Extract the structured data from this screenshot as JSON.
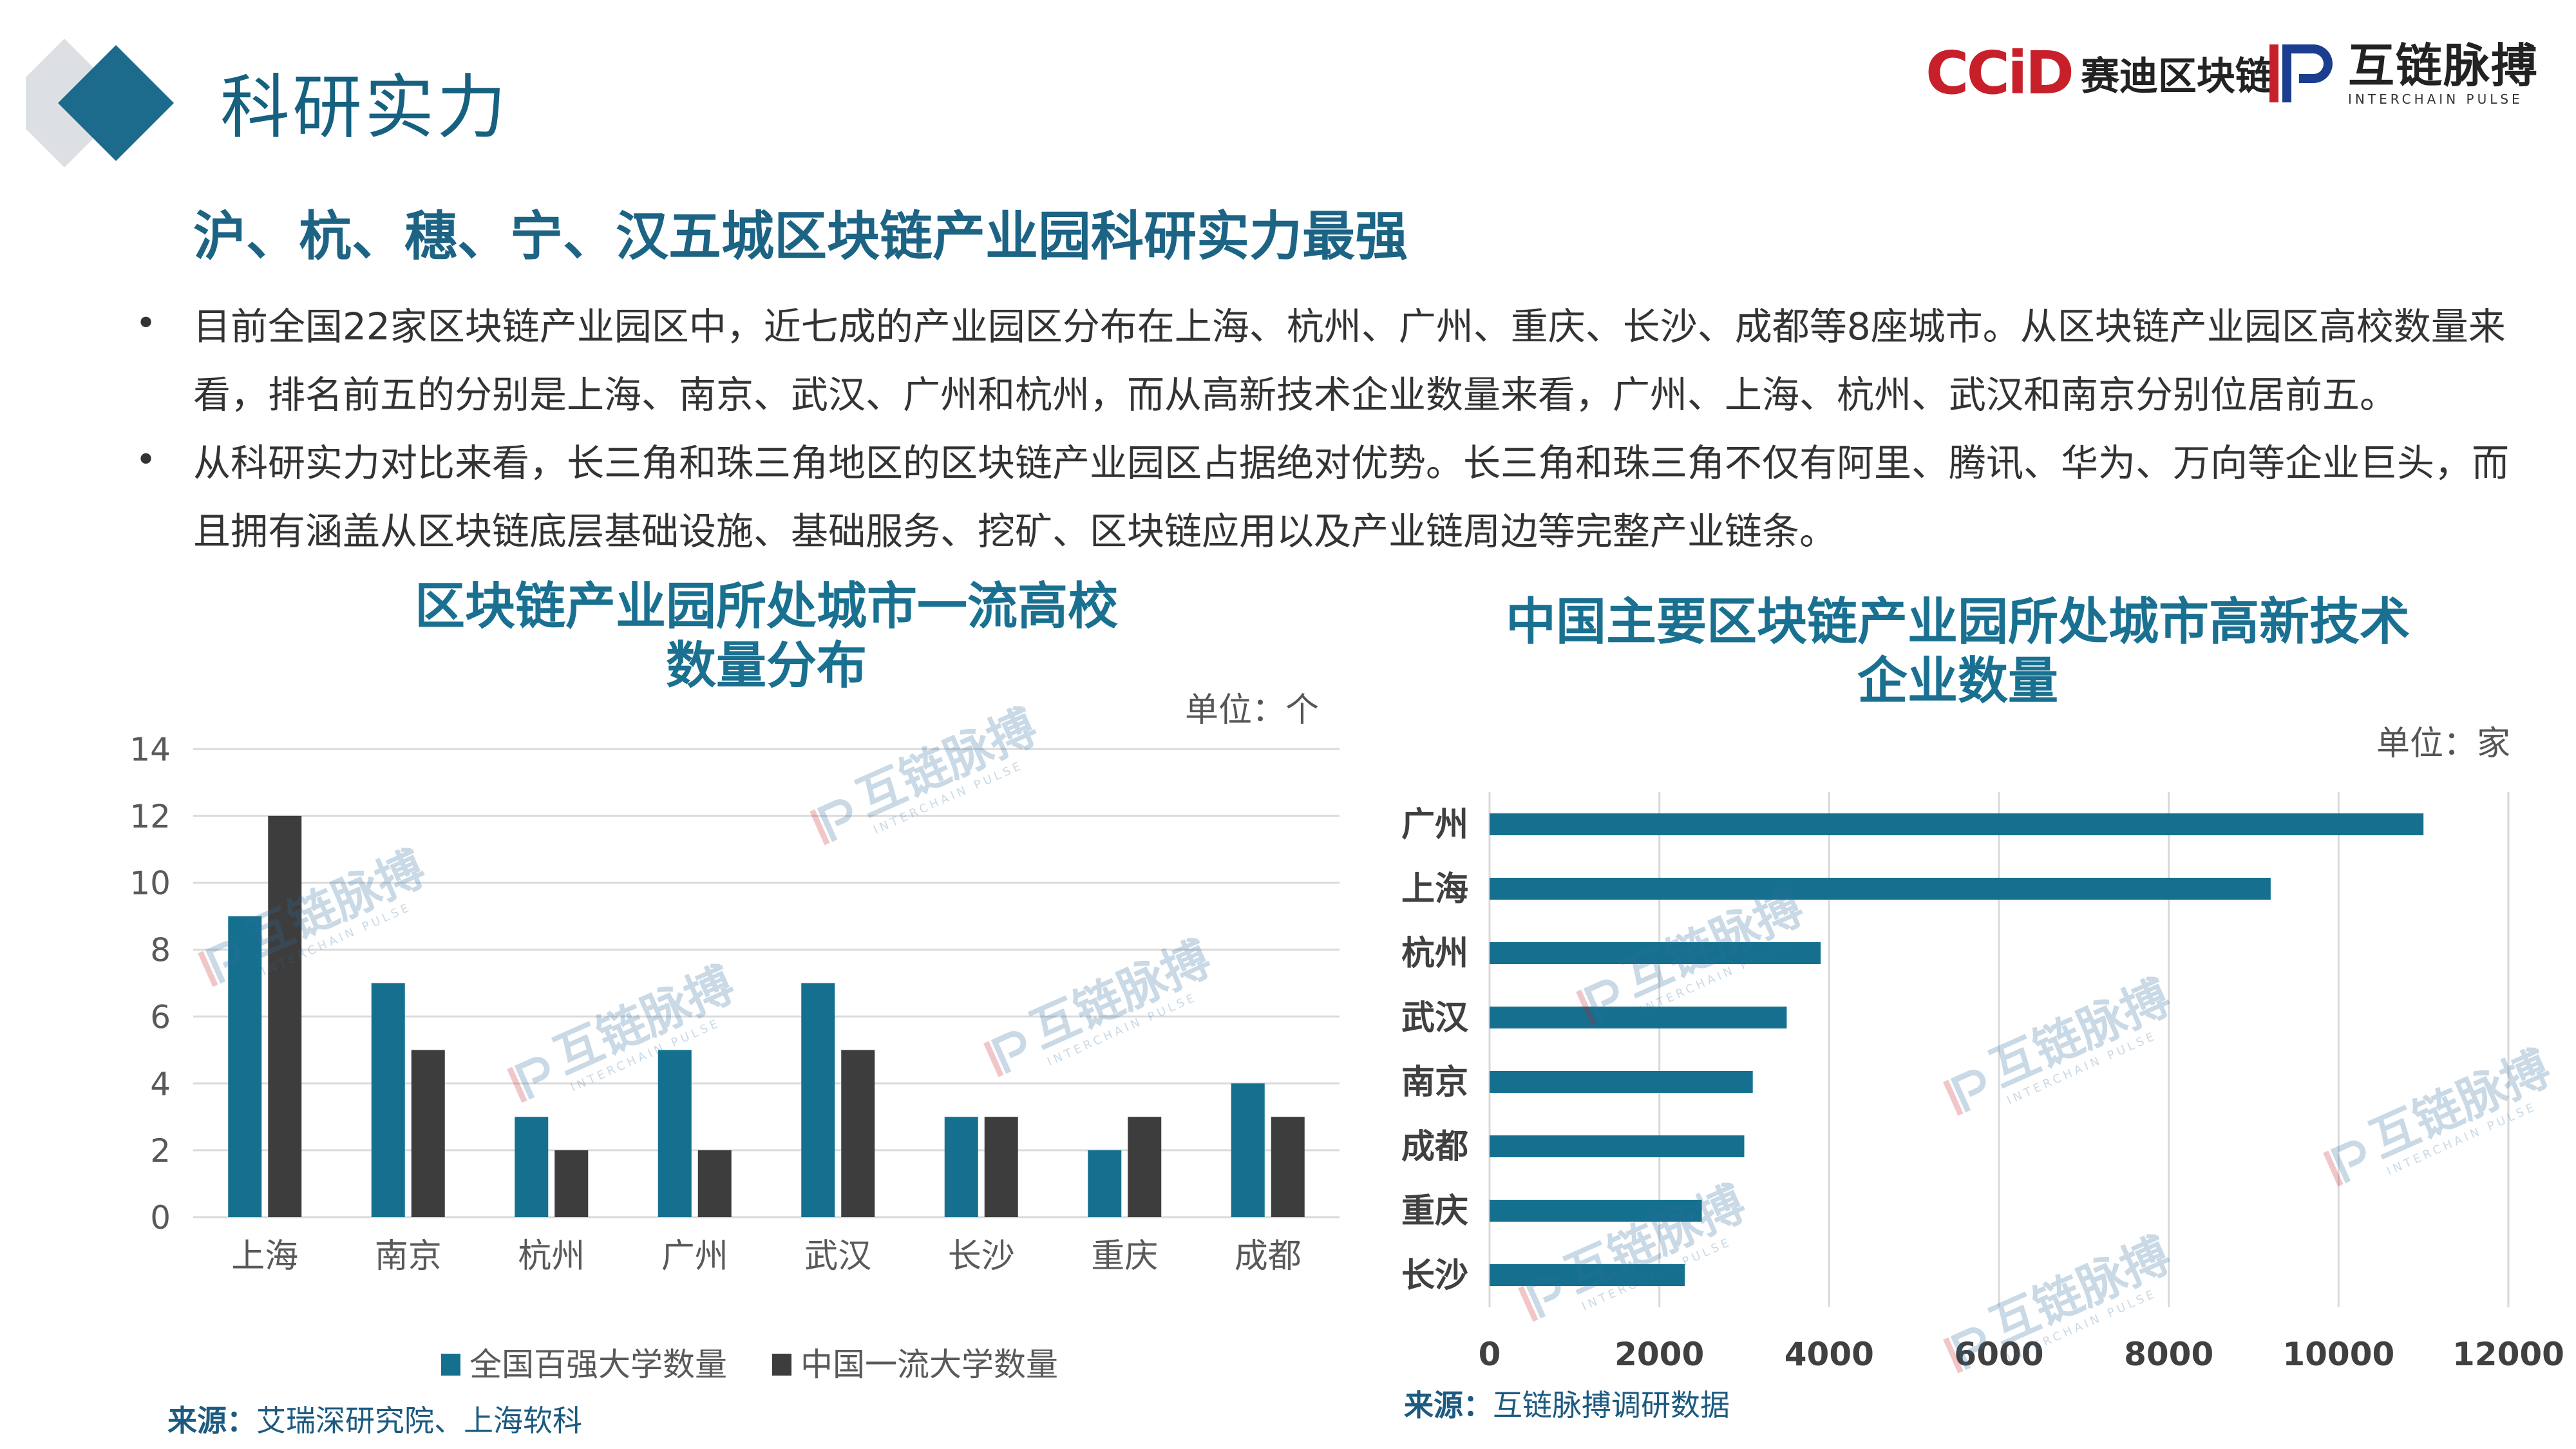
{
  "header": {
    "title": "科研实力",
    "logo_ccid_mark": "CCiD",
    "logo_ccid_text": "赛迪区块链",
    "logo_ic_cn": "互链脉搏",
    "logo_ic_en": "INTERCHAIN PULSE"
  },
  "headline": "沪、杭、穗、宁、汉五城区块链产业园科研实力最强",
  "bullets": [
    {
      "marker": "•",
      "text": "目前全国22家区块链产业园区中，近七成的产业园区分布在上海、杭州、广州、重庆、长沙、成都等8座城市。从区块链产业园区高校数量来看，排名前五的分别是上海、南京、武汉、广州和杭州，而从高新技术企业数量来看，广州、上海、杭州、武汉和南京分别位居前五。"
    },
    {
      "marker": "•",
      "text": "从科研实力对比来看，长三角和珠三角地区的区块链产业园区占据绝对优势。长三角和珠三角不仅有阿里、腾讯、华为、万向等企业巨头，而且拥有涵盖从区块链底层基础设施、基础服务、挖矿、区块链应用以及产业链周边等完整产业链条。"
    }
  ],
  "watermark": {
    "cn": "互链脉搏",
    "en": "INTERCHAIN PULSE"
  },
  "chart_data": [
    {
      "type": "bar",
      "title_line1": "区块链产业园所处城市一流高校",
      "title_line2": "数量分布",
      "unit": "单位：个",
      "categories": [
        "上海",
        "南京",
        "杭州",
        "广州",
        "武汉",
        "长沙",
        "重庆",
        "成都"
      ],
      "series": [
        {
          "name": "全国百强大学数量",
          "values": [
            9,
            7,
            3,
            5,
            7,
            3,
            2,
            4
          ],
          "color": "#15708f"
        },
        {
          "name": "中国一流大学数量",
          "values": [
            12,
            5,
            2,
            2,
            5,
            3,
            3,
            3
          ],
          "color": "#3d3d3d"
        }
      ],
      "yticks": [
        0,
        2,
        4,
        6,
        8,
        10,
        12,
        14
      ],
      "ylim": [
        0,
        14
      ],
      "grid": true,
      "legend": "bottom",
      "source_label": "来源：",
      "source_text": "艾瑞深研究院、上海软科"
    },
    {
      "type": "bar",
      "orientation": "horizontal",
      "title_line1": "中国主要区块链产业园所处城市高新技术",
      "title_line2": "企业数量",
      "unit": "单位：家",
      "categories": [
        "广州",
        "上海",
        "杭州",
        "武汉",
        "南京",
        "成都",
        "重庆",
        "长沙"
      ],
      "values": [
        11000,
        9200,
        3900,
        3500,
        3100,
        3000,
        2500,
        2300
      ],
      "color": "#15708f",
      "xticks": [
        0,
        2000,
        4000,
        6000,
        8000,
        10000,
        12000
      ],
      "xlim": [
        0,
        12000
      ],
      "grid": true,
      "source_label": "来源：",
      "source_text": "互链脉搏调研数据"
    }
  ]
}
